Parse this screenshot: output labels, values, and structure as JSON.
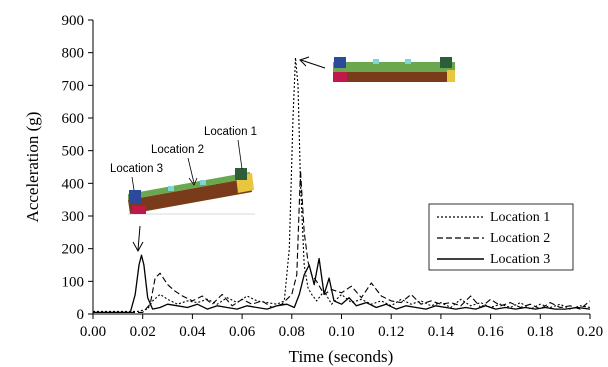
{
  "chart_data": {
    "type": "line",
    "title": "",
    "xlabel": "Time (seconds)",
    "ylabel": "Acceleration (g)",
    "xlim": [
      0.0,
      0.2
    ],
    "ylim": [
      0,
      900
    ],
    "x_ticks": [
      0.0,
      0.02,
      0.04,
      0.06,
      0.08,
      0.1,
      0.12,
      0.14,
      0.16,
      0.18,
      0.2
    ],
    "x_tick_labels": [
      "0.00",
      "0.02",
      "0.04",
      "0.06",
      "0.08",
      "0.10",
      "0.12",
      "0.14",
      "0.16",
      "0.18",
      "0.20"
    ],
    "y_ticks": [
      0,
      100,
      200,
      300,
      400,
      500,
      600,
      700,
      800,
      900
    ],
    "y_tick_labels": [
      "0",
      "100",
      "200",
      "300",
      "400",
      "500",
      "600",
      "700",
      "800",
      "900"
    ],
    "grid": false,
    "legend": "bottom-right",
    "series": [
      {
        "name": "Location 1",
        "style": "dotted",
        "x": [
          0.0,
          0.01,
          0.018,
          0.022,
          0.024,
          0.027,
          0.03,
          0.034,
          0.038,
          0.042,
          0.046,
          0.05,
          0.054,
          0.058,
          0.062,
          0.066,
          0.07,
          0.074,
          0.077,
          0.079,
          0.0805,
          0.0815,
          0.0825,
          0.0835,
          0.085,
          0.0865,
          0.088,
          0.09,
          0.093,
          0.096,
          0.1,
          0.104,
          0.108,
          0.112,
          0.116,
          0.12,
          0.124,
          0.128,
          0.132,
          0.136,
          0.14,
          0.144,
          0.148,
          0.152,
          0.156,
          0.16,
          0.164,
          0.168,
          0.172,
          0.176,
          0.18,
          0.184,
          0.188,
          0.192,
          0.196,
          0.2
        ],
        "y": [
          8,
          8,
          8,
          15,
          40,
          60,
          45,
          30,
          40,
          35,
          45,
          30,
          50,
          35,
          55,
          40,
          35,
          30,
          40,
          200,
          600,
          785,
          700,
          400,
          150,
          80,
          60,
          40,
          70,
          30,
          60,
          35,
          45,
          30,
          40,
          25,
          45,
          30,
          40,
          25,
          35,
          20,
          45,
          25,
          35,
          20,
          30,
          20,
          35,
          15,
          30,
          20,
          30,
          15,
          25,
          20
        ]
      },
      {
        "name": "Location 2",
        "style": "dashed",
        "x": [
          0.0,
          0.01,
          0.02,
          0.023,
          0.025,
          0.027,
          0.03,
          0.033,
          0.036,
          0.04,
          0.044,
          0.048,
          0.052,
          0.056,
          0.06,
          0.064,
          0.068,
          0.072,
          0.076,
          0.08,
          0.082,
          0.0835,
          0.085,
          0.0865,
          0.088,
          0.09,
          0.093,
          0.096,
          0.1,
          0.104,
          0.108,
          0.112,
          0.114,
          0.116,
          0.12,
          0.124,
          0.128,
          0.132,
          0.136,
          0.14,
          0.144,
          0.148,
          0.152,
          0.156,
          0.16,
          0.164,
          0.168,
          0.172,
          0.176,
          0.18,
          0.184,
          0.188,
          0.192,
          0.196,
          0.2
        ],
        "y": [
          5,
          5,
          5,
          30,
          110,
          125,
          90,
          70,
          55,
          40,
          55,
          30,
          60,
          25,
          45,
          30,
          40,
          20,
          30,
          60,
          120,
          440,
          250,
          160,
          120,
          100,
          60,
          75,
          65,
          85,
          50,
          95,
          75,
          55,
          40,
          35,
          60,
          30,
          40,
          30,
          35,
          25,
          55,
          20,
          45,
          25,
          35,
          20,
          30,
          15,
          35,
          20,
          25,
          15,
          40
        ]
      },
      {
        "name": "Location 3",
        "style": "solid",
        "x": [
          0.0,
          0.01,
          0.015,
          0.017,
          0.0185,
          0.0195,
          0.0205,
          0.022,
          0.024,
          0.027,
          0.03,
          0.034,
          0.038,
          0.042,
          0.046,
          0.05,
          0.054,
          0.058,
          0.062,
          0.066,
          0.07,
          0.074,
          0.078,
          0.081,
          0.083,
          0.085,
          0.087,
          0.089,
          0.091,
          0.093,
          0.095,
          0.097,
          0.1,
          0.103,
          0.106,
          0.11,
          0.114,
          0.118,
          0.122,
          0.126,
          0.13,
          0.134,
          0.138,
          0.142,
          0.146,
          0.15,
          0.154,
          0.158,
          0.162,
          0.166,
          0.17,
          0.174,
          0.178,
          0.182,
          0.186,
          0.19,
          0.195,
          0.2
        ],
        "y": [
          5,
          5,
          5,
          60,
          150,
          180,
          150,
          50,
          15,
          20,
          30,
          25,
          20,
          30,
          15,
          25,
          20,
          15,
          25,
          20,
          15,
          25,
          30,
          20,
          60,
          120,
          150,
          90,
          170,
          60,
          110,
          40,
          30,
          50,
          25,
          35,
          20,
          30,
          15,
          25,
          20,
          15,
          25,
          20,
          15,
          20,
          15,
          25,
          15,
          20,
          15,
          20,
          15,
          20,
          15,
          15,
          20,
          15
        ]
      }
    ],
    "annotations": [
      "Location 1",
      "Location 2",
      "Location 3"
    ]
  }
}
